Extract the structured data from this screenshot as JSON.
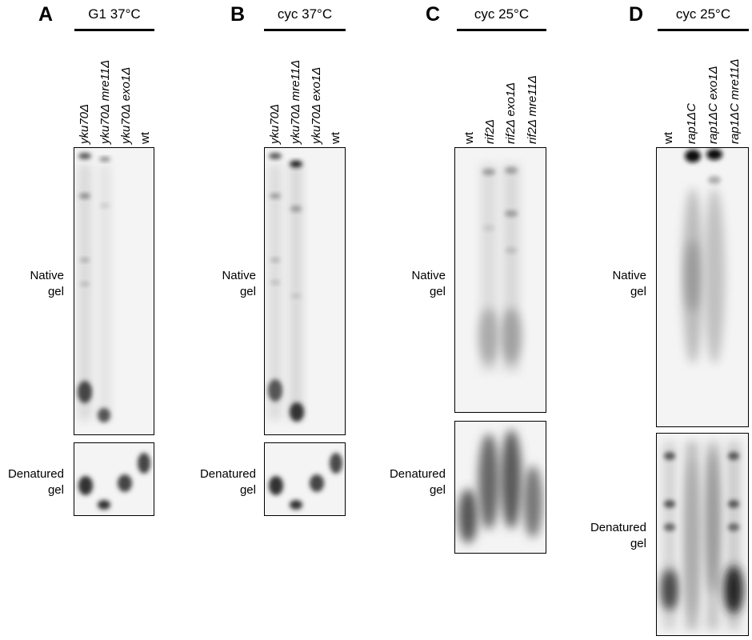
{
  "panels": [
    {
      "letter": "A",
      "condition": "G1 37°C",
      "lanes": [
        "yku70Δ",
        "yku70Δ mre11Δ",
        "yku70Δ exo1Δ",
        "wt"
      ],
      "native_label": [
        "Native",
        "gel"
      ],
      "denatured_label": [
        "Denatured",
        "gel"
      ]
    },
    {
      "letter": "B",
      "condition": "cyc 37°C",
      "lanes": [
        "yku70Δ",
        "yku70Δ mre11Δ",
        "yku70Δ exo1Δ",
        "wt"
      ],
      "native_label": [
        "Native",
        "gel"
      ],
      "denatured_label": [
        "Denatured",
        "gel"
      ]
    },
    {
      "letter": "C",
      "condition": "cyc 25°C",
      "lanes": [
        "wt",
        "rif2Δ",
        "rif2Δ exo1Δ",
        "rif2Δ mre11Δ"
      ],
      "native_label": [
        "Native",
        "gel"
      ],
      "denatured_label": [
        "Denatured",
        "gel"
      ]
    },
    {
      "letter": "D",
      "condition": "cyc 25°C",
      "lanes": [
        "wt",
        "rap1ΔC",
        "rap1ΔC exo1Δ",
        "rap1ΔC mre11Δ"
      ],
      "native_label": [
        "Native",
        "gel"
      ],
      "denatured_label": [
        "Denatured",
        "gel"
      ]
    }
  ]
}
